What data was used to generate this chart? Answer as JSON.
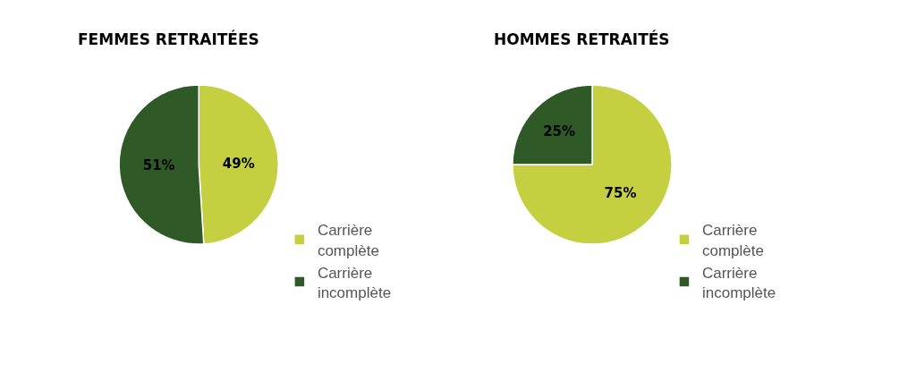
{
  "chart_data": [
    {
      "type": "pie",
      "title": "FEMMES RETRAITÉES",
      "categories": [
        "Carrière complète",
        "Carrière incomplète"
      ],
      "values": [
        49,
        51
      ],
      "value_labels": [
        "49%",
        "51%"
      ],
      "colors": [
        "#c5d040",
        "#2f5a28"
      ],
      "legend": "bottom right"
    },
    {
      "type": "pie",
      "title": "HOMMES RETRAITÉS",
      "categories": [
        "Carrière complète",
        "Carrière incomplète"
      ],
      "values": [
        75,
        25
      ],
      "value_labels": [
        "75%",
        "25%"
      ],
      "colors": [
        "#c5d040",
        "#2f5a28"
      ],
      "legend": "bottom right"
    }
  ]
}
